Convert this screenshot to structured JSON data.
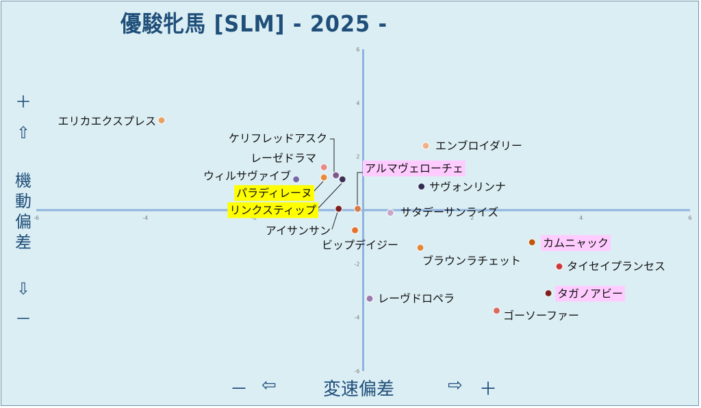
{
  "title": "優駿牝馬 [SLM]  - 2025 -",
  "y_axis": {
    "plus": "＋",
    "up_arrow": "⇧",
    "label_chars": [
      "機",
      "動",
      "偏",
      "差"
    ],
    "down_arrow": "⇩",
    "minus": "－"
  },
  "x_axis": {
    "minus": "－",
    "left_arrow": "⇦",
    "label": "変速偏差",
    "right_arrow": "⇨",
    "plus": "＋"
  },
  "chart_data": {
    "type": "scatter",
    "title": "優駿牝馬 [SLM]  - 2025 -",
    "xlabel": "変速偏差",
    "ylabel": "機動偏差",
    "xlim": [
      -6,
      6
    ],
    "ylim": [
      -6,
      6
    ],
    "grid": false,
    "x_ticks": [
      "-6",
      "-4",
      "-2",
      "0",
      "2",
      "4",
      "6"
    ],
    "y_ticks": [
      "6",
      "4",
      "2",
      "0",
      "-2",
      "-4",
      "-6"
    ],
    "points": [
      {
        "label": "エリカエクスプレス",
        "x": -3.7,
        "y": 3.35,
        "color": "#e8a063",
        "highlight": ""
      },
      {
        "label": "ケリフレッドアスク",
        "x": -0.5,
        "y": 1.3,
        "color": "#7b5a8a",
        "highlight": ""
      },
      {
        "label": "レーゼドラマ",
        "x": -0.72,
        "y": 1.6,
        "color": "#e48a8a",
        "highlight": ""
      },
      {
        "label": "ウィルサヴァイブ",
        "x": -1.23,
        "y": 1.15,
        "color": "#7468a8",
        "highlight": ""
      },
      {
        "label": "パラディレーヌ",
        "x": -0.72,
        "y": 1.22,
        "color": "#e88a3a",
        "highlight": "#ffff00"
      },
      {
        "label": "リンクスティップ",
        "x": -0.38,
        "y": 1.15,
        "color": "#3a2f55",
        "highlight": "#ffff00"
      },
      {
        "label": "アイサンサン",
        "x": -0.45,
        "y": 0.05,
        "color": "#7a1e1e",
        "highlight": ""
      },
      {
        "label": "ビップデイジー",
        "x": -0.15,
        "y": -0.75,
        "color": "#e3702b",
        "highlight": ""
      },
      {
        "label": "アルマヴェローチェ",
        "x": -0.1,
        "y": 0.05,
        "color": "#d87a4a",
        "highlight": "#ffccff"
      },
      {
        "label": "エンブロイダリー",
        "x": 1.15,
        "y": 2.4,
        "color": "#f0b089",
        "highlight": ""
      },
      {
        "label": "サヴォンリンナ",
        "x": 1.07,
        "y": 0.88,
        "color": "#2e2a52",
        "highlight": ""
      },
      {
        "label": "サタデーサンライズ",
        "x": 0.5,
        "y": -0.1,
        "color": "#c7a6c9",
        "highlight": ""
      },
      {
        "label": "ブラウンラチェット",
        "x": 1.05,
        "y": -1.4,
        "color": "#e0873a",
        "highlight": ""
      },
      {
        "label": "レーヴドロペラ",
        "x": 0.12,
        "y": -3.3,
        "color": "#9b7bae",
        "highlight": ""
      },
      {
        "label": "カムニャック",
        "x": 3.1,
        "y": -1.2,
        "color": "#c0560c",
        "highlight": "#ffccff"
      },
      {
        "label": "タイセイプランセス",
        "x": 3.6,
        "y": -2.1,
        "color": "#d03838",
        "highlight": ""
      },
      {
        "label": "タガノアビー",
        "x": 3.4,
        "y": -3.1,
        "color": "#7a1e1e",
        "highlight": "#ffccff"
      },
      {
        "label": "ゴーソーファー",
        "x": 2.45,
        "y": -3.75,
        "color": "#d86a5a",
        "highlight": ""
      }
    ]
  }
}
